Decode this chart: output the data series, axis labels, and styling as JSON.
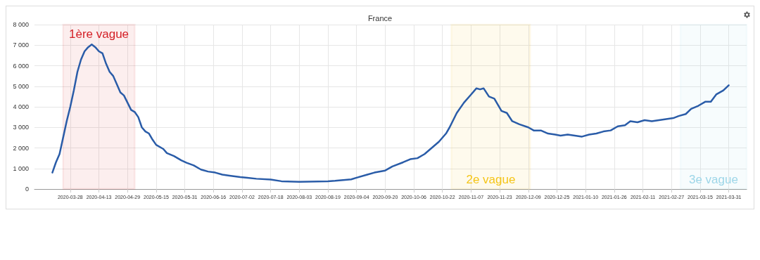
{
  "chart_data": {
    "type": "line",
    "title": "France",
    "x": [
      "2020-03-18",
      "2020-03-20",
      "2020-03-22",
      "2020-03-24",
      "2020-03-26",
      "2020-03-28",
      "2020-03-30",
      "2020-04-01",
      "2020-04-03",
      "2020-04-05",
      "2020-04-07",
      "2020-04-09",
      "2020-04-11",
      "2020-04-13",
      "2020-04-15",
      "2020-04-17",
      "2020-04-19",
      "2020-04-21",
      "2020-04-23",
      "2020-04-25",
      "2020-04-27",
      "2020-04-29",
      "2020-05-01",
      "2020-05-03",
      "2020-05-05",
      "2020-05-07",
      "2020-05-09",
      "2020-05-11",
      "2020-05-13",
      "2020-05-15",
      "2020-05-19",
      "2020-05-21",
      "2020-05-25",
      "2020-05-29",
      "2020-06-01",
      "2020-06-05",
      "2020-06-09",
      "2020-06-13",
      "2020-06-17",
      "2020-06-21",
      "2020-06-25",
      "2020-07-01",
      "2020-07-05",
      "2020-07-10",
      "2020-07-18",
      "2020-07-24",
      "2020-08-03",
      "2020-08-19",
      "2020-08-23",
      "2020-09-01",
      "2020-09-04",
      "2020-09-10",
      "2020-09-14",
      "2020-09-20",
      "2020-09-24",
      "2020-09-30",
      "2020-10-04",
      "2020-10-08",
      "2020-10-12",
      "2020-10-16",
      "2020-10-20",
      "2020-10-24",
      "2020-10-26",
      "2020-10-30",
      "2020-11-03",
      "2020-11-07",
      "2020-11-10",
      "2020-11-12",
      "2020-11-14",
      "2020-11-17",
      "2020-11-20",
      "2020-11-24",
      "2020-11-27",
      "2020-11-30",
      "2020-12-04",
      "2020-12-09",
      "2020-12-12",
      "2020-12-16",
      "2020-12-20",
      "2020-12-24",
      "2020-12-27",
      "2020-12-31",
      "2021-01-04",
      "2021-01-08",
      "2021-01-12",
      "2021-01-16",
      "2021-01-20",
      "2021-01-24",
      "2021-01-28",
      "2021-02-01",
      "2021-02-04",
      "2021-02-08",
      "2021-02-12",
      "2021-02-16",
      "2021-02-20",
      "2021-02-24",
      "2021-02-28",
      "2021-03-03",
      "2021-03-07",
      "2021-03-10",
      "2021-03-14",
      "2021-03-18",
      "2021-03-21",
      "2021-03-24",
      "2021-03-28",
      "2021-03-31"
    ],
    "series": [
      {
        "color": "#2a5ca8",
        "values": [
          800,
          1300,
          1700,
          2500,
          3300,
          4000,
          4800,
          5700,
          6300,
          6700,
          6900,
          7030,
          6900,
          6700,
          6600,
          6100,
          5700,
          5500,
          5100,
          4700,
          4550,
          4200,
          3850,
          3750,
          3500,
          3000,
          2800,
          2700,
          2400,
          2150,
          1950,
          1750,
          1600,
          1400,
          1280,
          1150,
          950,
          850,
          800,
          700,
          650,
          580,
          550,
          500,
          460,
          380,
          350,
          380,
          400,
          470,
          550,
          700,
          800,
          900,
          1100,
          1300,
          1450,
          1500,
          1700,
          2000,
          2300,
          2700,
          3000,
          3700,
          4200,
          4600,
          4900,
          4850,
          4900,
          4500,
          4400,
          3800,
          3700,
          3300,
          3150,
          3000,
          2850,
          2850,
          2700,
          2650,
          2600,
          2650,
          2600,
          2550,
          2650,
          2700,
          2800,
          2850,
          3050,
          3100,
          3300,
          3250,
          3350,
          3300,
          3350,
          3400,
          3450,
          3550,
          3650,
          3900,
          4050,
          4250,
          4250,
          4600,
          4800,
          5050
        ]
      }
    ],
    "xlim": [
      "2020-03-08",
      "2021-04-10"
    ],
    "xticks": [
      "2020-03-28",
      "2020-04-13",
      "2020-04-29",
      "2020-05-15",
      "2020-05-31",
      "2020-06-16",
      "2020-07-02",
      "2020-07-18",
      "2020-08-03",
      "2020-08-19",
      "2020-09-04",
      "2020-09-20",
      "2020-10-06",
      "2020-10-22",
      "2020-11-07",
      "2020-11-23",
      "2020-12-09",
      "2020-12-25",
      "2021-01-10",
      "2021-01-26",
      "2021-02-11",
      "2021-02-27",
      "2021-03-15",
      "2021-03-31"
    ],
    "ylim": [
      0,
      8000
    ],
    "yticks": [
      0,
      {
        "value": 1000,
        "label": "1 000"
      },
      {
        "value": 2000,
        "label": "2 000"
      },
      {
        "value": 3000,
        "label": "3 000"
      },
      {
        "value": 4000,
        "label": "4 000"
      },
      {
        "value": 5000,
        "label": "5 000"
      },
      {
        "value": 6000,
        "label": "6 000"
      },
      {
        "value": 7000,
        "label": "7 000"
      },
      {
        "value": 8000,
        "label": "8 000"
      }
    ],
    "bands": [
      {
        "axis": "x",
        "from": "2020-03-24",
        "to": "2020-05-03",
        "label": "1ère vague",
        "color": "#d42027"
      },
      {
        "axis": "x",
        "from": "2020-10-27",
        "to": "2020-12-10",
        "label": "2e vague",
        "color": "#f5c518"
      },
      {
        "axis": "x",
        "from": "2021-03-04",
        "to": "2021-04-10",
        "label": "3e vague",
        "color": "#9dd6e8"
      }
    ],
    "grid": true,
    "marker": "none",
    "line_style": "solid"
  }
}
